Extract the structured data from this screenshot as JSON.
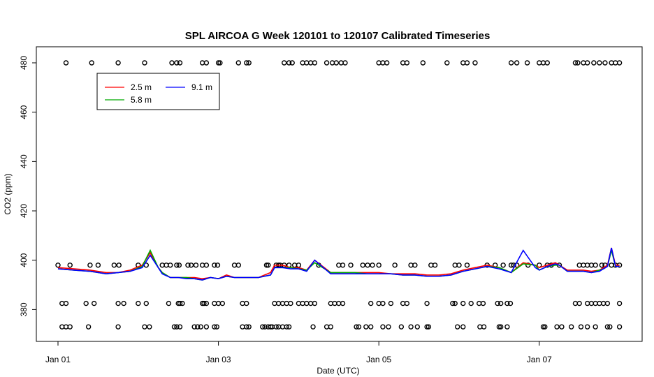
{
  "chart_data": {
    "type": "line",
    "title": "SPL AIRCOA G  Week 120101 to 120107  Calibrated Timeseries",
    "xlabel": "Date (UTC)",
    "ylabel": "CO2 (ppm)",
    "xlim": [
      0,
      7.2
    ],
    "ylim": [
      367,
      483
    ],
    "x_ticks": [
      {
        "value": 0,
        "label": "Jan 01"
      },
      {
        "value": 2,
        "label": "Jan 03"
      },
      {
        "value": 4,
        "label": "Jan 05"
      },
      {
        "value": 6,
        "label": "Jan 07"
      }
    ],
    "y_ticks": [
      380,
      400,
      420,
      440,
      460,
      480
    ],
    "legend": {
      "placement": "top-left",
      "entries": [
        {
          "name": "2.5 m",
          "color": "#ff0000"
        },
        {
          "name": "9.1 m",
          "color": "#0000ff"
        },
        {
          "name": "5.8 m",
          "color": "#00aa00"
        }
      ]
    },
    "series": [
      {
        "name": "2.5 m",
        "color": "#ff0000",
        "x": [
          0.0,
          0.2,
          0.4,
          0.6,
          0.75,
          0.9,
          1.05,
          1.15,
          1.25,
          1.3,
          1.4,
          1.5,
          1.6,
          1.7,
          1.8,
          1.9,
          2.0,
          2.1,
          2.2,
          2.35,
          2.5,
          2.65,
          2.7,
          2.8,
          2.9,
          3.0,
          3.1,
          3.2,
          3.4,
          3.55,
          3.7,
          3.85,
          4.0,
          4.15,
          4.3,
          4.45,
          4.6,
          4.75,
          4.9,
          5.05,
          5.2,
          5.35,
          5.5,
          5.65,
          5.8,
          5.95,
          6.0,
          6.1,
          6.2,
          6.25,
          6.35,
          6.45,
          6.55,
          6.65,
          6.75,
          6.8,
          6.85,
          6.9,
          6.95,
          7.0
        ],
        "y": [
          397,
          396.5,
          396,
          395,
          395,
          396,
          398,
          403,
          397,
          395,
          393,
          393,
          393,
          393,
          392.5,
          393,
          392.5,
          394,
          393,
          393,
          393,
          395,
          398,
          398,
          397,
          397,
          396,
          400,
          395,
          395,
          395,
          395,
          395,
          394.5,
          394.5,
          394.5,
          394,
          394,
          394.5,
          396,
          397,
          398,
          397,
          395,
          399,
          398,
          397,
          398,
          399,
          398,
          396,
          396,
          396,
          395.5,
          396,
          397,
          398,
          405,
          398,
          398
        ]
      },
      {
        "name": "5.8 m",
        "color": "#00aa00",
        "x": [
          0.0,
          0.2,
          0.4,
          0.6,
          0.75,
          0.9,
          1.05,
          1.15,
          1.25,
          1.3,
          1.4,
          1.5,
          1.6,
          1.7,
          1.8,
          1.9,
          2.0,
          2.1,
          2.2,
          2.35,
          2.5,
          2.65,
          2.7,
          2.8,
          2.9,
          3.0,
          3.1,
          3.2,
          3.4,
          3.55,
          3.7,
          3.85,
          4.0,
          4.15,
          4.3,
          4.45,
          4.6,
          4.75,
          4.9,
          5.05,
          5.2,
          5.35,
          5.5,
          5.65,
          5.8,
          5.95,
          6.0,
          6.1,
          6.2,
          6.25,
          6.35,
          6.45,
          6.55,
          6.65,
          6.75,
          6.8,
          6.85,
          6.9,
          6.95,
          7.0
        ],
        "y": [
          396.5,
          396,
          395.5,
          394.5,
          395,
          395.5,
          397.5,
          404,
          397,
          395,
          393,
          393,
          393,
          392.5,
          392,
          393,
          392.5,
          393.5,
          393,
          393,
          393,
          394,
          397,
          397,
          397,
          396.5,
          396,
          399,
          395,
          395,
          395,
          394.5,
          394.5,
          394.5,
          394,
          394,
          393.5,
          393.5,
          394,
          395.5,
          396.5,
          397.5,
          397,
          395,
          398.5,
          398,
          396,
          397.5,
          398,
          398,
          395.5,
          395.5,
          395.5,
          395,
          396,
          396.5,
          397.5,
          404,
          397.5,
          397.5
        ]
      },
      {
        "name": "9.1 m",
        "color": "#0000ff",
        "x": [
          0.0,
          0.2,
          0.4,
          0.6,
          0.75,
          0.9,
          1.05,
          1.15,
          1.25,
          1.3,
          1.4,
          1.5,
          1.6,
          1.7,
          1.8,
          1.9,
          2.0,
          2.1,
          2.2,
          2.35,
          2.5,
          2.65,
          2.7,
          2.8,
          2.9,
          3.0,
          3.1,
          3.2,
          3.4,
          3.55,
          3.7,
          3.85,
          4.0,
          4.15,
          4.3,
          4.45,
          4.6,
          4.75,
          4.9,
          5.05,
          5.2,
          5.35,
          5.5,
          5.65,
          5.8,
          5.95,
          6.0,
          6.1,
          6.2,
          6.25,
          6.35,
          6.45,
          6.55,
          6.65,
          6.75,
          6.8,
          6.85,
          6.9,
          6.95,
          7.0
        ],
        "y": [
          396.5,
          396,
          395.5,
          394.5,
          395,
          395.5,
          397,
          402,
          397,
          394.5,
          393,
          393,
          392.5,
          392.5,
          392,
          393,
          392.5,
          393.5,
          393,
          393,
          393,
          394,
          397,
          397,
          396.5,
          396.5,
          395.5,
          400,
          394.5,
          394.5,
          394.5,
          394.5,
          394.5,
          394.5,
          394,
          394,
          393.5,
          393.5,
          394,
          395.5,
          396.5,
          397.5,
          396.5,
          395,
          404,
          397,
          396,
          397.5,
          398.5,
          398,
          395.5,
          395.5,
          395.5,
          395,
          395.5,
          396.5,
          397.5,
          405,
          397.5,
          397.5
        ]
      },
      {
        "name": "",
        "type": "scatter",
        "color": "#000000",
        "x": [
          0.05,
          0.1,
          0.15,
          0.38,
          0.75,
          1.08,
          1.14,
          1.45,
          1.48,
          1.52,
          1.7,
          1.74,
          1.78,
          1.85,
          1.95,
          1.98,
          2.3,
          2.35,
          2.38,
          2.55,
          2.58,
          2.62,
          2.65,
          2.67,
          2.72,
          2.75,
          2.8,
          2.85,
          2.88,
          3.18,
          3.35,
          3.4,
          3.72,
          3.75,
          3.84,
          3.9,
          4.05,
          4.12,
          4.28,
          4.4,
          4.48,
          4.6,
          4.62,
          4.98,
          5.05,
          5.26,
          5.31,
          5.5,
          5.52,
          5.6,
          6.05,
          6.07,
          6.22,
          6.28,
          6.4,
          6.52,
          6.6,
          6.7,
          6.85,
          6.88,
          7.0,
          0.05,
          0.1,
          0.35,
          0.45,
          0.75,
          0.82,
          1.0,
          1.1,
          1.38,
          1.5,
          1.52,
          1.55,
          1.8,
          1.82,
          1.85,
          1.95,
          2.0,
          2.05,
          2.3,
          2.35,
          2.7,
          2.75,
          2.8,
          2.85,
          2.9,
          3.0,
          3.05,
          3.1,
          3.15,
          3.2,
          3.4,
          3.45,
          3.5,
          3.55,
          3.9,
          4.0,
          4.05,
          4.15,
          4.3,
          4.35,
          4.6,
          4.92,
          4.95,
          5.05,
          5.15,
          5.25,
          5.3,
          5.48,
          5.52,
          5.6,
          5.64,
          6.45,
          6.5,
          6.6,
          6.65,
          6.7,
          6.75,
          6.8,
          6.85,
          7.0,
          0.0,
          0.15,
          0.4,
          0.5,
          0.7,
          0.76,
          1.0,
          1.1,
          1.3,
          1.35,
          1.4,
          1.48,
          1.51,
          1.62,
          1.66,
          1.72,
          1.8,
          1.85,
          1.95,
          1.99,
          2.2,
          2.25,
          2.6,
          2.62,
          2.72,
          2.75,
          2.77,
          2.82,
          2.88,
          2.95,
          3.0,
          3.25,
          3.5,
          3.55,
          3.65,
          3.8,
          3.86,
          3.92,
          4.0,
          4.2,
          4.4,
          4.45,
          4.65,
          4.7,
          4.95,
          5.0,
          5.1,
          5.35,
          5.45,
          5.55,
          5.65,
          5.68,
          5.72,
          5.86,
          6.0,
          6.1,
          6.15,
          6.25,
          6.5,
          6.55,
          6.6,
          6.65,
          6.7,
          6.78,
          6.82,
          6.9,
          6.95,
          7.0
        ],
        "y": [
          373,
          373,
          373,
          373,
          373,
          373,
          373,
          373,
          373,
          373,
          373,
          373,
          373,
          373,
          373,
          373,
          373,
          373,
          373,
          373,
          373,
          373,
          373,
          373,
          373,
          373,
          373,
          373,
          373,
          373,
          373,
          373,
          373,
          373,
          373,
          373,
          373,
          373,
          373,
          373,
          373,
          373,
          373,
          373,
          373,
          373,
          373,
          373,
          373,
          373,
          373,
          373,
          373,
          373,
          373,
          373,
          373,
          373,
          373,
          373,
          373,
          382.5,
          382.5,
          382.5,
          382.5,
          382.5,
          382.5,
          382.5,
          382.5,
          382.5,
          382.5,
          382.5,
          382.5,
          382.5,
          382.5,
          382.5,
          382.5,
          382.5,
          382.5,
          382.5,
          382.5,
          382.5,
          382.5,
          382.5,
          382.5,
          382.5,
          382.5,
          382.5,
          382.5,
          382.5,
          382.5,
          382.5,
          382.5,
          382.5,
          382.5,
          382.5,
          382.5,
          382.5,
          382.5,
          382.5,
          382.5,
          382.5,
          382.5,
          382.5,
          382.5,
          382.5,
          382.5,
          382.5,
          382.5,
          382.5,
          382.5,
          382.5,
          382.5,
          382.5,
          382.5,
          382.5,
          382.5,
          382.5,
          382.5,
          382.5,
          382.5,
          398,
          398,
          398,
          398,
          398,
          398,
          398,
          398,
          398,
          398,
          398,
          398,
          398,
          398,
          398,
          398,
          398,
          398,
          398,
          398,
          398,
          398,
          398,
          398,
          398,
          398,
          398,
          398,
          398,
          398,
          398,
          398,
          398,
          398,
          398,
          398,
          398,
          398,
          398,
          398,
          398,
          398,
          398,
          398,
          398,
          398,
          398,
          398,
          398,
          398,
          398,
          398,
          398,
          398,
          398,
          398,
          398,
          398,
          398,
          398,
          398,
          398,
          398,
          398,
          398,
          398,
          398,
          398
        ]
      },
      {
        "name": "",
        "type": "scatter",
        "color": "#000000",
        "x": [
          0.1,
          0.42,
          0.75,
          1.08,
          1.42,
          1.48,
          1.52,
          1.8,
          1.85,
          2.0,
          2.02,
          2.25,
          2.35,
          2.38,
          2.82,
          2.88,
          2.92,
          3.05,
          3.1,
          3.15,
          3.2,
          3.35,
          3.42,
          3.47,
          3.53,
          3.58,
          4.0,
          4.05,
          4.1,
          4.3,
          4.35,
          4.55,
          4.85,
          5.05,
          5.1,
          5.2,
          5.65,
          5.72,
          5.85,
          6.0,
          6.05,
          6.1,
          6.45,
          6.48,
          6.55,
          6.6,
          6.68,
          6.75,
          6.82,
          6.9,
          6.95,
          7.0
        ],
        "y": [
          480,
          480,
          480,
          480,
          480,
          480,
          480,
          480,
          480,
          480,
          480,
          480,
          480,
          480,
          480,
          480,
          480,
          480,
          480,
          480,
          480,
          480,
          480,
          480,
          480,
          480,
          480,
          480,
          480,
          480,
          480,
          480,
          480,
          480,
          480,
          480,
          480,
          480,
          480,
          480,
          480,
          480,
          480,
          480,
          480,
          480,
          480,
          480,
          480,
          480,
          480,
          480
        ]
      }
    ]
  }
}
